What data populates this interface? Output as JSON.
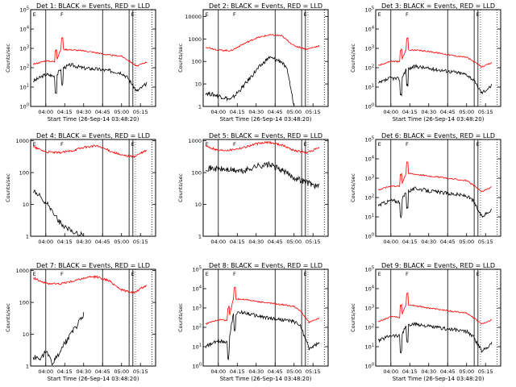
{
  "figure": {
    "x_ticks": [
      "04:00",
      "04:15",
      "04:30",
      "04:45",
      "05:00",
      "05:15"
    ],
    "event_lines_x": [
      "04:00",
      "04:45"
    ],
    "colors": {
      "events": "#000000",
      "lld": "#ff0000",
      "background": "#ffffff"
    }
  },
  "chart_data": [
    {
      "type": "line",
      "title": "Det 1: BLACK = Events, RED = LLD",
      "markers": [
        "E",
        "F",
        "E"
      ],
      "xlabel": "Start Time (26-Sep-14 03:48:20)",
      "ylabel": "Counts/sec",
      "y_scale": "log",
      "y_ticks": [
        "10^0",
        "10^1",
        "10^2",
        "10^3",
        "10^4",
        "10^5"
      ],
      "ylim": [
        1,
        100000
      ],
      "profile": "flare_peaks",
      "series": [
        {
          "name": "Events",
          "x": [
            "03:50",
            "04:00",
            "04:08",
            "04:12",
            "04:20",
            "04:30",
            "04:40",
            "04:50",
            "05:00",
            "05:05",
            "05:12",
            "05:20"
          ],
          "values": [
            20,
            45,
            35,
            90,
            140,
            95,
            85,
            70,
            55,
            30,
            6,
            15
          ]
        },
        {
          "name": "LLD",
          "x": [
            "03:50",
            "04:00",
            "04:08",
            "04:12",
            "04:20",
            "04:30",
            "04:40",
            "04:50",
            "05:00",
            "05:05",
            "05:12",
            "05:20"
          ],
          "values": [
            150,
            230,
            200,
            900,
            850,
            750,
            600,
            450,
            400,
            250,
            120,
            200
          ]
        }
      ]
    },
    {
      "type": "line",
      "title": "Det 2: BLACK = Events, RED = LLD",
      "markers": [
        "E",
        "F",
        "E"
      ],
      "xlabel": "Start Time (26-Sep-14 03:48:20)",
      "ylabel": "Counts/sec",
      "y_scale": "log",
      "y_ticks": [
        "1",
        "10",
        "100",
        "1000",
        "10000"
      ],
      "ylim": [
        1,
        20000
      ],
      "profile": "dome",
      "series": [
        {
          "name": "Events",
          "x": [
            "03:50",
            "04:00",
            "04:10",
            "04:20",
            "04:30",
            "04:40",
            "04:50",
            "04:55",
            "05:00"
          ],
          "values": [
            4,
            3,
            2,
            8,
            40,
            150,
            100,
            35,
            1
          ]
        },
        {
          "name": "LLD",
          "x": [
            "03:50",
            "04:00",
            "04:10",
            "04:20",
            "04:30",
            "04:40",
            "04:50",
            "05:00",
            "05:10",
            "05:20"
          ],
          "values": [
            450,
            320,
            300,
            600,
            1100,
            1500,
            1400,
            500,
            350,
            500
          ]
        }
      ]
    },
    {
      "type": "line",
      "title": "Det 3: BLACK = Events, RED = LLD",
      "markers": [
        "E",
        "F",
        "E"
      ],
      "xlabel": "Start Time (26-Sep-14 03:48:20)",
      "ylabel": "Counts/sec",
      "y_scale": "log",
      "y_ticks": [
        "10^0",
        "10^1",
        "10^2",
        "10^3",
        "10^4",
        "10^5"
      ],
      "ylim": [
        1,
        100000
      ],
      "profile": "flare_peaks",
      "series": [
        {
          "name": "Events",
          "x": [
            "03:50",
            "04:00",
            "04:08",
            "04:12",
            "04:20",
            "04:30",
            "04:40",
            "04:50",
            "05:00",
            "05:05",
            "05:12",
            "05:20"
          ],
          "values": [
            15,
            30,
            25,
            80,
            120,
            90,
            75,
            60,
            45,
            25,
            5,
            12
          ]
        },
        {
          "name": "LLD",
          "x": [
            "03:50",
            "04:00",
            "04:08",
            "04:12",
            "04:20",
            "04:30",
            "04:40",
            "04:50",
            "05:00",
            "05:05",
            "05:12",
            "05:20"
          ],
          "values": [
            130,
            220,
            200,
            850,
            800,
            700,
            550,
            420,
            350,
            220,
            110,
            180
          ]
        }
      ]
    },
    {
      "type": "line",
      "title": "Det 4: BLACK = Events, RED = LLD",
      "markers": [
        "E",
        "F",
        "E"
      ],
      "xlabel": "",
      "ylabel": "Counts/sec",
      "y_scale": "log",
      "y_ticks": [
        "1",
        "10",
        "100",
        "1000"
      ],
      "ylim": [
        1,
        1100
      ],
      "profile": "sparse",
      "series": [
        {
          "name": "Events",
          "x": [
            "03:50",
            "03:55",
            "04:00",
            "04:05",
            "04:10",
            "04:15",
            "04:20",
            "04:30"
          ],
          "values": [
            25,
            18,
            12,
            6,
            3,
            2,
            1.5,
            1
          ]
        },
        {
          "name": "LLD",
          "x": [
            "03:50",
            "04:00",
            "04:10",
            "04:20",
            "04:30",
            "04:40",
            "04:50",
            "05:00",
            "05:10",
            "05:20"
          ],
          "values": [
            650,
            450,
            420,
            480,
            620,
            700,
            500,
            350,
            320,
            500
          ]
        }
      ]
    },
    {
      "type": "line",
      "title": "Det 5: BLACK = Events, RED = LLD",
      "markers": [
        "E",
        "F",
        "E"
      ],
      "xlabel": "",
      "ylabel": "Counts/sec",
      "y_scale": "log",
      "y_ticks": [
        "1",
        "10",
        "100",
        "1000"
      ],
      "ylim": [
        1,
        1100
      ],
      "profile": "dome",
      "series": [
        {
          "name": "Events",
          "x": [
            "03:50",
            "04:00",
            "04:10",
            "04:20",
            "04:30",
            "04:40",
            "04:50",
            "05:00",
            "05:10",
            "05:20"
          ],
          "values": [
            140,
            130,
            120,
            110,
            160,
            180,
            120,
            70,
            50,
            35
          ]
        },
        {
          "name": "LLD",
          "x": [
            "03:50",
            "04:00",
            "04:10",
            "04:20",
            "04:30",
            "04:40",
            "04:50",
            "05:00",
            "05:10",
            "05:20"
          ],
          "values": [
            700,
            500,
            520,
            620,
            800,
            900,
            750,
            500,
            420,
            600
          ]
        }
      ]
    },
    {
      "type": "line",
      "title": "Det 6: BLACK = Events, RED = LLD",
      "markers": [
        "E",
        "F",
        "E"
      ],
      "xlabel": "",
      "ylabel": "Counts/sec",
      "y_scale": "log",
      "y_ticks": [
        "10^0",
        "10^1",
        "10^2",
        "10^3",
        "10^4",
        "10^5"
      ],
      "ylim": [
        1,
        100000
      ],
      "profile": "flare_peaks",
      "series": [
        {
          "name": "Events",
          "x": [
            "03:50",
            "04:00",
            "04:08",
            "04:12",
            "04:20",
            "04:30",
            "04:40",
            "04:50",
            "05:00",
            "05:05",
            "05:12",
            "05:20"
          ],
          "values": [
            40,
            70,
            60,
            200,
            300,
            220,
            180,
            150,
            120,
            70,
            10,
            25
          ]
        },
        {
          "name": "LLD",
          "x": [
            "03:50",
            "04:00",
            "04:08",
            "04:12",
            "04:20",
            "04:30",
            "04:40",
            "04:50",
            "05:00",
            "05:05",
            "05:12",
            "05:20"
          ],
          "values": [
            250,
            400,
            380,
            1800,
            1600,
            1300,
            1100,
            900,
            750,
            450,
            200,
            350
          ]
        }
      ]
    },
    {
      "type": "line",
      "title": "Det 7: BLACK = Events, RED = LLD",
      "markers": [
        "E",
        "F",
        "E"
      ],
      "xlabel": "Start Time (26-Sep-14 03:48:20)",
      "ylabel": "Counts/sec",
      "y_scale": "log",
      "y_ticks": [
        "1",
        "10",
        "100",
        "1000"
      ],
      "ylim": [
        1,
        1100
      ],
      "profile": "sparse",
      "series": [
        {
          "name": "Events",
          "x": [
            "03:50",
            "03:55",
            "04:00",
            "04:05",
            "04:10",
            "04:15",
            "04:20",
            "04:30"
          ],
          "values": [
            2,
            1.5,
            3,
            1.2,
            2.5,
            5,
            10,
            40
          ]
        },
        {
          "name": "LLD",
          "x": [
            "03:50",
            "04:00",
            "04:10",
            "04:20",
            "04:30",
            "04:40",
            "04:50",
            "05:00",
            "05:10",
            "05:20"
          ],
          "values": [
            600,
            400,
            380,
            450,
            580,
            650,
            480,
            250,
            200,
            350
          ]
        }
      ]
    },
    {
      "type": "line",
      "title": "Det 8: BLACK = Events, RED = LLD",
      "markers": [
        "E",
        "F",
        "E"
      ],
      "xlabel": "Start Time (26-Sep-14 03:48:20)",
      "ylabel": "Counts/sec",
      "y_scale": "log",
      "y_ticks": [
        "10^0",
        "10^1",
        "10^2",
        "10^3",
        "10^4",
        "10^5"
      ],
      "ylim": [
        1,
        100000
      ],
      "profile": "flare_peaks",
      "series": [
        {
          "name": "Events",
          "x": [
            "03:50",
            "04:00",
            "04:08",
            "04:12",
            "04:20",
            "04:30",
            "04:40",
            "04:50",
            "05:00",
            "05:05",
            "05:12",
            "05:20"
          ],
          "values": [
            10,
            20,
            18,
            500,
            600,
            400,
            300,
            250,
            200,
            120,
            8,
            15
          ]
        },
        {
          "name": "LLD",
          "x": [
            "03:50",
            "04:00",
            "04:08",
            "04:12",
            "04:20",
            "04:30",
            "04:40",
            "04:50",
            "05:00",
            "05:05",
            "05:12",
            "05:20"
          ],
          "values": [
            150,
            250,
            230,
            3000,
            2800,
            2200,
            1800,
            1500,
            1200,
            700,
            180,
            300
          ]
        }
      ]
    },
    {
      "type": "line",
      "title": "Det 9: BLACK = Events, RED = LLD",
      "markers": [
        "E",
        "F",
        "E"
      ],
      "xlabel": "Start Time (26-Sep-14 03:48:20)",
      "ylabel": "Counts/sec",
      "y_scale": "log",
      "y_ticks": [
        "10^0",
        "10^1",
        "10^2",
        "10^3",
        "10^4",
        "10^5"
      ],
      "ylim": [
        1,
        100000
      ],
      "profile": "flare_peaks",
      "series": [
        {
          "name": "Events",
          "x": [
            "03:50",
            "04:00",
            "04:08",
            "04:12",
            "04:20",
            "04:30",
            "04:40",
            "04:50",
            "05:00",
            "05:05",
            "05:12",
            "05:20"
          ],
          "values": [
            20,
            40,
            35,
            120,
            150,
            110,
            90,
            75,
            60,
            35,
            6,
            15
          ]
        },
        {
          "name": "LLD",
          "x": [
            "03:50",
            "04:00",
            "04:08",
            "04:12",
            "04:20",
            "04:30",
            "04:40",
            "04:50",
            "05:00",
            "05:05",
            "05:12",
            "05:20"
          ],
          "values": [
            200,
            350,
            330,
            1500,
            1300,
            1000,
            800,
            650,
            550,
            330,
            150,
            250
          ]
        }
      ]
    }
  ]
}
